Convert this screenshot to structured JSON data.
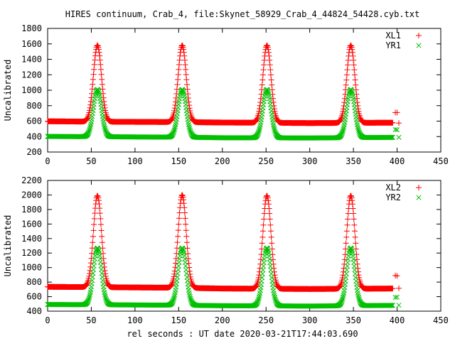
{
  "title": "HIRES continuum, Crab_4, file:Skynet_58929_Crab_4_44824_54428.cyb.txt",
  "xlabel": "rel seconds : UT date 2020-03-21T17:44:03.690",
  "chart_data": [
    {
      "type": "scatter",
      "ylabel": "Uncalibrated",
      "xlim": [
        0,
        450
      ],
      "ylim": [
        200,
        1800
      ],
      "xticks": [
        0,
        50,
        100,
        150,
        200,
        250,
        300,
        350,
        400,
        450
      ],
      "yticks": [
        200,
        400,
        600,
        800,
        1000,
        1200,
        1400,
        1600,
        1800
      ],
      "grid": false,
      "legend_position": "top-right",
      "x_range": [
        0,
        403
      ],
      "series": [
        {
          "name": "XL1",
          "color": "#ff0000",
          "marker": "plus",
          "baseline": [
            [
              0,
              598
            ],
            [
              60,
              592
            ],
            [
              150,
              588
            ],
            [
              200,
              582
            ],
            [
              300,
              575
            ],
            [
              400,
              580
            ]
          ],
          "peaks": [
            {
              "x": 57,
              "y": 1580
            },
            {
              "x": 154,
              "y": 1580
            },
            {
              "x": 251,
              "y": 1580
            },
            {
              "x": 347,
              "y": 1580
            }
          ],
          "peak_width": 4.6,
          "extra_points": [
            [
              398,
              710
            ],
            [
              400,
              712
            ],
            [
              402,
              575
            ]
          ]
        },
        {
          "name": "YR1",
          "color": "#00c000",
          "marker": "cross",
          "baseline": [
            [
              0,
              402
            ],
            [
              60,
              398
            ],
            [
              150,
              392
            ],
            [
              200,
              385
            ],
            [
              300,
              382
            ],
            [
              400,
              390
            ]
          ],
          "peaks": [
            {
              "x": 57,
              "y": 1010
            },
            {
              "x": 154,
              "y": 1010
            },
            {
              "x": 251,
              "y": 1010
            },
            {
              "x": 347,
              "y": 1010
            }
          ],
          "peak_width": 4.6,
          "extra_points": [
            [
              398,
              490
            ],
            [
              400,
              488
            ],
            [
              402,
              390
            ]
          ]
        }
      ]
    },
    {
      "type": "scatter",
      "ylabel": "Uncalibrated",
      "xlim": [
        0,
        450
      ],
      "ylim": [
        400,
        2200
      ],
      "xticks": [
        0,
        50,
        100,
        150,
        200,
        250,
        300,
        350,
        400,
        450
      ],
      "yticks": [
        400,
        600,
        800,
        1000,
        1200,
        1400,
        1600,
        1800,
        2000,
        2200
      ],
      "grid": false,
      "legend_position": "top-right",
      "x_range": [
        0,
        403
      ],
      "series": [
        {
          "name": "XL2",
          "color": "#ff0000",
          "marker": "plus",
          "baseline": [
            [
              0,
              735
            ],
            [
              60,
              730
            ],
            [
              150,
              722
            ],
            [
              200,
              712
            ],
            [
              300,
              705
            ],
            [
              400,
              712
            ]
          ],
          "peaks": [
            {
              "x": 57,
              "y": 1990
            },
            {
              "x": 154,
              "y": 2000
            },
            {
              "x": 251,
              "y": 1990
            },
            {
              "x": 347,
              "y": 1990
            }
          ],
          "peak_width": 4.6,
          "extra_points": [
            [
              398,
              890
            ],
            [
              400,
              885
            ],
            [
              402,
              715
            ]
          ]
        },
        {
          "name": "YR2",
          "color": "#00c000",
          "marker": "cross",
          "baseline": [
            [
              0,
              492
            ],
            [
              60,
              488
            ],
            [
              150,
              482
            ],
            [
              200,
              475
            ],
            [
              300,
              470
            ],
            [
              400,
              480
            ]
          ],
          "peaks": [
            {
              "x": 57,
              "y": 1270
            },
            {
              "x": 154,
              "y": 1270
            },
            {
              "x": 251,
              "y": 1270
            },
            {
              "x": 347,
              "y": 1270
            }
          ],
          "peak_width": 4.6,
          "extra_points": [
            [
              398,
              590
            ],
            [
              400,
              592
            ],
            [
              402,
              482
            ]
          ]
        }
      ]
    }
  ]
}
